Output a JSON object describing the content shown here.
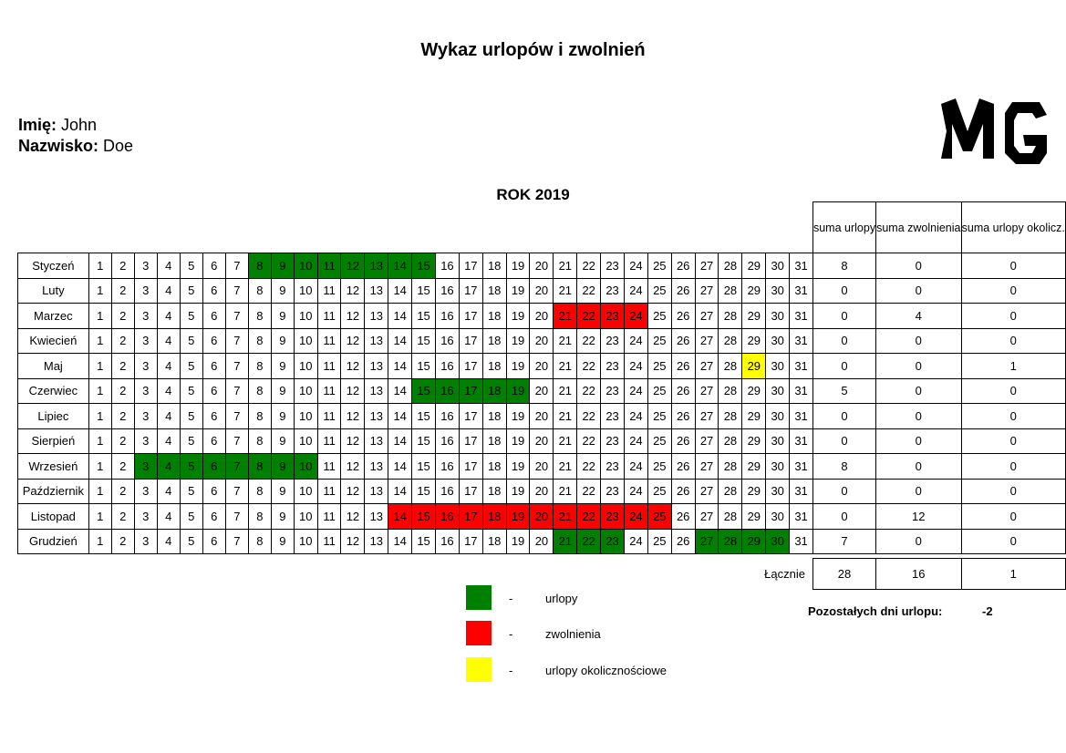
{
  "title": "Wykaz urlopów i zwolnień",
  "person": {
    "first_name_label": "Imię:",
    "first_name": "John",
    "last_name_label": "Nazwisko:",
    "last_name": "Doe"
  },
  "year_label": "ROK 2019",
  "columns": {
    "sum_leave": "suma urlopy",
    "sum_sick": "suma zwolnienia",
    "sum_occasional": "suma urlopy okolicz."
  },
  "colors": {
    "urlop": "#008000",
    "zwolnienie": "#ff0000",
    "okolicznosciowy": "#ffff00"
  },
  "months": [
    {
      "name": "Styczeń",
      "urlop": [
        8,
        9,
        10,
        11,
        12,
        13,
        14,
        15
      ],
      "zwol": [],
      "okol": [],
      "sum_leave": "8",
      "sum_sick": "0",
      "sum_occasional": "0"
    },
    {
      "name": "Luty",
      "urlop": [],
      "zwol": [],
      "okol": [],
      "sum_leave": "0",
      "sum_sick": "0",
      "sum_occasional": "0"
    },
    {
      "name": "Marzec",
      "urlop": [],
      "zwol": [
        21,
        22,
        23,
        24
      ],
      "okol": [],
      "sum_leave": "0",
      "sum_sick": "4",
      "sum_occasional": "0"
    },
    {
      "name": "Kwiecień",
      "urlop": [],
      "zwol": [],
      "okol": [],
      "sum_leave": "0",
      "sum_sick": "0",
      "sum_occasional": "0"
    },
    {
      "name": "Maj",
      "urlop": [],
      "zwol": [],
      "okol": [
        29
      ],
      "sum_leave": "0",
      "sum_sick": "0",
      "sum_occasional": "1"
    },
    {
      "name": "Czerwiec",
      "urlop": [
        15,
        16,
        17,
        18,
        19
      ],
      "zwol": [],
      "okol": [],
      "sum_leave": "5",
      "sum_sick": "0",
      "sum_occasional": "0"
    },
    {
      "name": "Lipiec",
      "urlop": [],
      "zwol": [],
      "okol": [],
      "sum_leave": "0",
      "sum_sick": "0",
      "sum_occasional": "0"
    },
    {
      "name": "Sierpień",
      "urlop": [],
      "zwol": [],
      "okol": [],
      "sum_leave": "0",
      "sum_sick": "0",
      "sum_occasional": "0"
    },
    {
      "name": "Wrzesień",
      "urlop": [
        3,
        4,
        5,
        6,
        7,
        8,
        9,
        10
      ],
      "zwol": [],
      "okol": [],
      "sum_leave": "8",
      "sum_sick": "0",
      "sum_occasional": "0"
    },
    {
      "name": "Październik",
      "urlop": [],
      "zwol": [],
      "okol": [],
      "sum_leave": "0",
      "sum_sick": "0",
      "sum_occasional": "0"
    },
    {
      "name": "Listopad",
      "urlop": [],
      "zwol": [
        14,
        15,
        16,
        17,
        18,
        19,
        20,
        21,
        22,
        23,
        24,
        25
      ],
      "okol": [],
      "sum_leave": "0",
      "sum_sick": "12",
      "sum_occasional": "0"
    },
    {
      "name": "Grudzień",
      "urlop": [
        21,
        22,
        23,
        27,
        28,
        29,
        30
      ],
      "zwol": [],
      "okol": [],
      "sum_leave": "7",
      "sum_sick": "0",
      "sum_occasional": "0"
    }
  ],
  "days_in_row": 31,
  "totals": {
    "label": "Łącznie",
    "leave": "28",
    "sick": "16",
    "occasional": "1"
  },
  "legend": [
    {
      "color": "#008000",
      "dash": "-",
      "label": "urlopy"
    },
    {
      "color": "#ff0000",
      "dash": "-",
      "label": "zwolnienia"
    },
    {
      "color": "#ffff00",
      "dash": "-",
      "label": "urlopy okolicznościowe"
    }
  ],
  "remaining": {
    "label": "Pozostałych dni urlopu:",
    "value": "-2"
  },
  "logo_text": "MG"
}
